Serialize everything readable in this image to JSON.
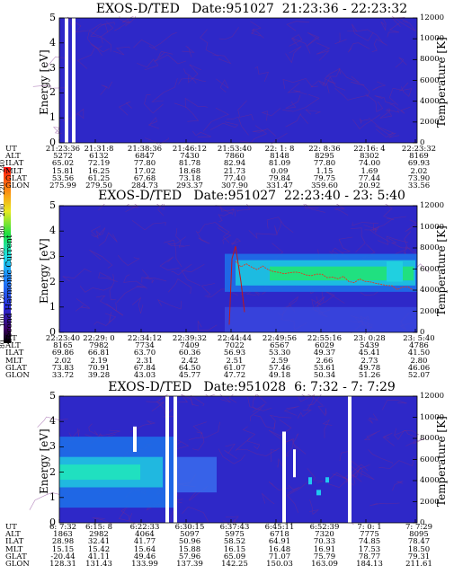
{
  "chart_data": [
    {
      "type": "heatmap",
      "title": "EXOS-D/TED   Date:951027  21:23:36 - 22:23:32",
      "ylabel": "Energy [eV]",
      "ylabel2": "Temperature [K]",
      "ylim": [
        0,
        5
      ],
      "y2lim": [
        0,
        12000
      ],
      "yticks": [
        "0",
        "1",
        "2",
        "3",
        "4",
        "5"
      ],
      "y2ticks": [
        "0",
        "2000",
        "4000",
        "6000",
        "8000",
        "10000",
        "12000"
      ],
      "rows": [
        "UT",
        "ALT",
        "ILAT",
        "MLT",
        "GLAT",
        "GLON"
      ],
      "columns": [
        [
          "21:23:36",
          "5272",
          "65.02",
          "15.81",
          "53.56",
          "275.99"
        ],
        [
          "21:31:8",
          "6132",
          "72.19",
          "16.25",
          "61.25",
          "279.50"
        ],
        [
          "21:38:36",
          "6847",
          "77.80",
          "17.02",
          "67.68",
          "284.73"
        ],
        [
          "21:46:12",
          "7430",
          "81.78",
          "18.68",
          "73.18",
          "293.37"
        ],
        [
          "21:53:40",
          "7860",
          "82.94",
          "21.73",
          "77.40",
          "307.90"
        ],
        [
          "22: 1: 8",
          "8148",
          "81.09",
          "0.09",
          "79.84",
          "331.47"
        ],
        [
          "22: 8:36",
          "8295",
          "77.80",
          "1.15",
          "79.75",
          "359.60"
        ],
        [
          "22:16: 4",
          "8302",
          "74.00",
          "1.69",
          "77.44",
          "20.92"
        ],
        [
          "22:23:32",
          "8169",
          "69.93",
          "2.02",
          "73.90",
          "33.56"
        ]
      ]
    },
    {
      "type": "heatmap",
      "title": "EXOS-D/TED   Date:951027  22:23:40 - 23: 5:40",
      "ylabel": "Energy [eV]",
      "ylabel2": "Temperature [K]",
      "colorbar_label": "Second Harmonic Current",
      "colorbar_ticks": [
        "80",
        "100",
        "120",
        "140",
        "160",
        "180",
        "200",
        "220",
        "240"
      ],
      "ylim": [
        0,
        5
      ],
      "y2lim": [
        0,
        12000
      ],
      "yticks": [
        "0",
        "1",
        "2",
        "3",
        "4",
        "5"
      ],
      "y2ticks": [
        "0",
        "2000",
        "4000",
        "6000",
        "8000",
        "10000",
        "12000"
      ],
      "rows": [
        "UT",
        "ALT",
        "ILAT",
        "MLT",
        "GLAT",
        "GLON"
      ],
      "columns": [
        [
          "22:23:40",
          "8165",
          "69.86",
          "2.02",
          "73.83",
          "33.72"
        ],
        [
          "22:29: 0",
          "7982",
          "66.81",
          "2.19",
          "70.91",
          "39.28"
        ],
        [
          "22:34:12",
          "7734",
          "63.70",
          "2.31",
          "67.84",
          "43.03"
        ],
        [
          "22:39:32",
          "7409",
          "60.36",
          "2.42",
          "64.50",
          "45.77"
        ],
        [
          "22:44:44",
          "7022",
          "56.93",
          "2.51",
          "61.07",
          "47.72"
        ],
        [
          "22:49:56",
          "6567",
          "53.30",
          "2.59",
          "57.46",
          "49.18"
        ],
        [
          "22:55:16",
          "6029",
          "49.37",
          "2.66",
          "53.61",
          "50.34"
        ],
        [
          "23: 0:28",
          "5439",
          "45.41",
          "2.73",
          "49.78",
          "51.26"
        ],
        [
          "23: 5:40",
          "4786",
          "41.50",
          "2.80",
          "46.06",
          "52.07"
        ]
      ]
    },
    {
      "type": "heatmap",
      "title": "EXOS-D/TED   Date:951028  6: 7:32 - 7: 7:29",
      "ylabel": "Energy [eV]",
      "ylabel2": "Temperature [K]",
      "ylim": [
        0,
        5
      ],
      "y2lim": [
        0,
        12000
      ],
      "yticks": [
        "0",
        "1",
        "2",
        "3",
        "4",
        "5"
      ],
      "y2ticks": [
        "0",
        "2000",
        "4000",
        "6000",
        "8000",
        "10000",
        "12000"
      ],
      "rows": [
        "UT",
        "ALT",
        "ILAT",
        "MLT",
        "GLAT",
        "GLON"
      ],
      "columns": [
        [
          "6: 7:32",
          "1863",
          "28.98",
          "15.15",
          "-20.44",
          "128.31"
        ],
        [
          "6:15: 8",
          "2982",
          "32.41",
          "15.42",
          "41.11",
          "131.43"
        ],
        [
          "6:22:33",
          "4064",
          "41.77",
          "15.64",
          "49.46",
          "133.99"
        ],
        [
          "6:30:15",
          "5097",
          "50.96",
          "15.88",
          "57.96",
          "137.39"
        ],
        [
          "6:37:43",
          "5975",
          "58.52",
          "16.15",
          "65.09",
          "142.25"
        ],
        [
          "6:45:11",
          "6718",
          "64.91",
          "16.48",
          "71.07",
          "150.03"
        ],
        [
          "6:52:39",
          "7320",
          "70.33",
          "16.91",
          "75.79",
          "163.09"
        ],
        [
          "7: 0: 1",
          "7775",
          "74.85",
          "17.53",
          "78.77",
          "184.13"
        ],
        [
          "7: 7:29",
          "8095",
          "78.47",
          "18.50",
          "79.31",
          "211.61"
        ]
      ]
    }
  ]
}
